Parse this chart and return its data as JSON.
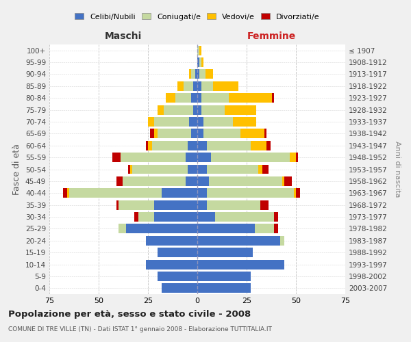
{
  "age_groups": [
    "0-4",
    "5-9",
    "10-14",
    "15-19",
    "20-24",
    "25-29",
    "30-34",
    "35-39",
    "40-44",
    "45-49",
    "50-54",
    "55-59",
    "60-64",
    "65-69",
    "70-74",
    "75-79",
    "80-84",
    "85-89",
    "90-94",
    "95-99",
    "100+"
  ],
  "birth_years": [
    "2003-2007",
    "1998-2002",
    "1993-1997",
    "1988-1992",
    "1983-1987",
    "1978-1982",
    "1973-1977",
    "1968-1972",
    "1963-1967",
    "1958-1962",
    "1953-1957",
    "1948-1952",
    "1943-1947",
    "1938-1942",
    "1933-1937",
    "1928-1932",
    "1923-1927",
    "1918-1922",
    "1913-1917",
    "1908-1912",
    "≤ 1907"
  ],
  "colors": {
    "celibi": "#4472c4",
    "coniugati": "#c5d9a0",
    "vedovi": "#ffc000",
    "divorziati": "#c00000"
  },
  "maschi": {
    "celibi": [
      18,
      20,
      26,
      20,
      26,
      36,
      22,
      22,
      18,
      6,
      5,
      6,
      5,
      3,
      4,
      2,
      3,
      2,
      1,
      0,
      0
    ],
    "coniugati": [
      0,
      0,
      0,
      0,
      0,
      4,
      8,
      18,
      47,
      32,
      28,
      33,
      18,
      17,
      18,
      15,
      8,
      5,
      2,
      0,
      0
    ],
    "vedovi": [
      0,
      0,
      0,
      0,
      0,
      0,
      0,
      0,
      1,
      0,
      1,
      0,
      2,
      2,
      3,
      3,
      5,
      3,
      1,
      0,
      0
    ],
    "divorziati": [
      0,
      0,
      0,
      0,
      0,
      0,
      2,
      1,
      2,
      3,
      1,
      4,
      1,
      2,
      0,
      0,
      0,
      0,
      0,
      0,
      0
    ]
  },
  "femmine": {
    "celibi": [
      27,
      27,
      44,
      28,
      42,
      29,
      9,
      5,
      5,
      6,
      5,
      7,
      5,
      3,
      3,
      2,
      2,
      2,
      1,
      1,
      0
    ],
    "coniugati": [
      0,
      0,
      0,
      0,
      2,
      10,
      30,
      27,
      44,
      37,
      26,
      40,
      22,
      19,
      15,
      12,
      14,
      6,
      3,
      1,
      1
    ],
    "vedovi": [
      0,
      0,
      0,
      0,
      0,
      0,
      0,
      0,
      1,
      1,
      2,
      3,
      8,
      12,
      12,
      16,
      22,
      13,
      4,
      1,
      1
    ],
    "divorziati": [
      0,
      0,
      0,
      0,
      0,
      2,
      2,
      4,
      2,
      4,
      3,
      1,
      2,
      1,
      0,
      0,
      1,
      0,
      0,
      0,
      0
    ]
  },
  "title": "Popolazione per età, sesso e stato civile - 2008",
  "subtitle": "COMUNE DI TRE VILLE (TN) - Dati ISTAT 1° gennaio 2008 - Elaborazione TUTTITALIA.IT",
  "xlabel_left": "Maschi",
  "xlabel_right": "Femmine",
  "ylabel_left": "Fasce di età",
  "ylabel_right": "Anni di nascita",
  "xlim": 75,
  "legend_labels": [
    "Celibi/Nubili",
    "Coniugati/e",
    "Vedovi/e",
    "Divorziati/e"
  ],
  "bg_color": "#f0f0f0",
  "plot_bg_color": "#ffffff",
  "grid_color": "#bbbbbb"
}
